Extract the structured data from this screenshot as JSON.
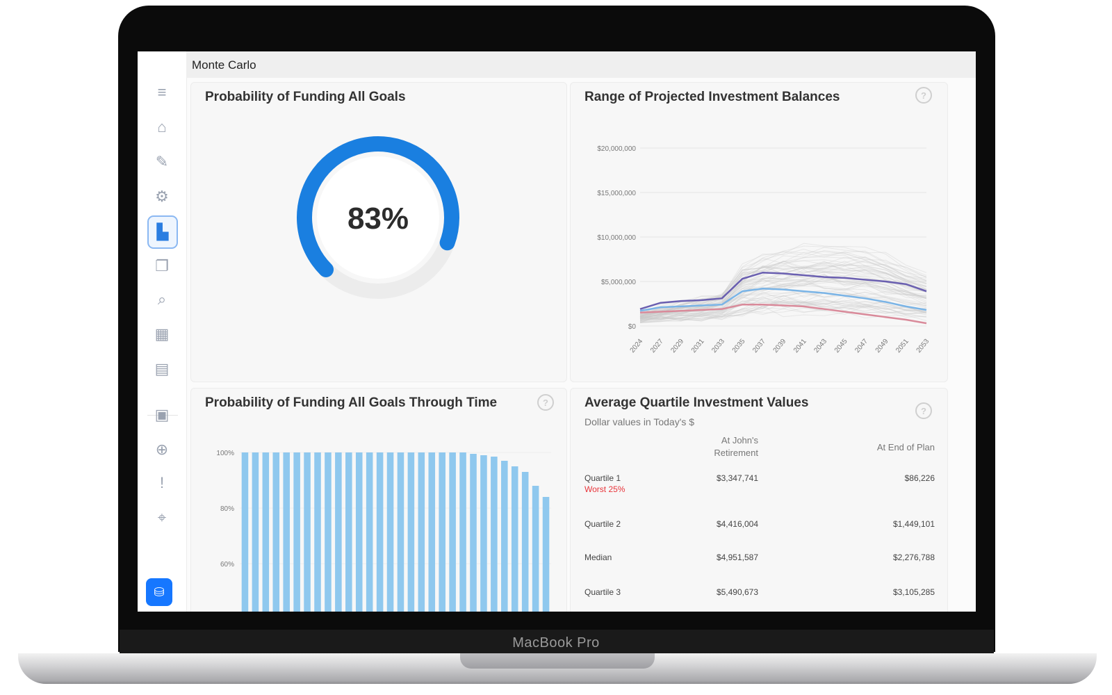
{
  "app": {
    "title": "Monte Carlo"
  },
  "device": {
    "brand": "MacBook Pro"
  },
  "sidebar": {
    "items": [
      {
        "icon": "menu-icon",
        "glyph": "≡"
      },
      {
        "icon": "home-icon",
        "glyph": "⌂"
      },
      {
        "icon": "edit-icon",
        "glyph": "✎"
      },
      {
        "icon": "settings-icon",
        "glyph": "⚙"
      },
      {
        "icon": "chart-icon",
        "glyph": "▙",
        "active": true
      },
      {
        "icon": "wallet-icon",
        "glyph": "❐"
      },
      {
        "icon": "search-person-icon",
        "glyph": "⌕"
      },
      {
        "icon": "bank-icon",
        "glyph": "▦"
      },
      {
        "icon": "documents-icon",
        "glyph": "▤"
      },
      {
        "icon": "clipboard-icon",
        "glyph": "▣"
      },
      {
        "icon": "globe-icon",
        "glyph": "⊕"
      },
      {
        "icon": "alert-icon",
        "glyph": "!"
      },
      {
        "icon": "location-icon",
        "glyph": "⌖"
      }
    ],
    "cta_icon": "database-icon",
    "cta_glyph": "⛁"
  },
  "probability_card": {
    "title": "Probability of Funding All Goals",
    "value_label": "83%",
    "value": 0.83,
    "accent_color": "#1a7fe0"
  },
  "range_card": {
    "title": "Range of Projected Investment Balances",
    "help": "?"
  },
  "through_time_card": {
    "title": "Probability of Funding All Goals Through Time",
    "help": "?"
  },
  "quartile_card": {
    "title": "Average Quartile Investment Values",
    "subtitle": "Dollar values in Today's $",
    "help": "?",
    "headers": [
      "At John's Retirement",
      "At End of Plan"
    ],
    "rows": [
      {
        "label": "Quartile 1",
        "sublabel": "Worst 25%",
        "retirement": "$3,347,741",
        "end": "$86,226"
      },
      {
        "label": "Quartile 2",
        "sublabel": "",
        "retirement": "$4,416,004",
        "end": "$1,449,101"
      },
      {
        "label": "Median",
        "sublabel": "",
        "retirement": "$4,951,587",
        "end": "$2,276,788"
      },
      {
        "label": "Quartile 3",
        "sublabel": "",
        "retirement": "$5,490,673",
        "end": "$3,105,285"
      }
    ],
    "warning_color": "#e8343a"
  },
  "chart_data": [
    {
      "type": "line",
      "title": "Range of Projected Investment Balances",
      "ylim": [
        0,
        20000000
      ],
      "y_ticks": [
        "$0",
        "$5,000,000",
        "$10,000,000",
        "$15,000,000",
        "$20,000,000"
      ],
      "x": [
        "2024",
        "2027",
        "2029",
        "2031",
        "2033",
        "2035",
        "2037",
        "2039",
        "2041",
        "2043",
        "2045",
        "2047",
        "2049",
        "2051",
        "2053"
      ],
      "grid": true,
      "series": [
        {
          "color": "#6a5fb0",
          "values": [
            1900000,
            2600000,
            2800000,
            2900000,
            3100000,
            5300000,
            6000000,
            5900000,
            5700000,
            5500000,
            5400000,
            5200000,
            5000000,
            4700000,
            3900000
          ]
        },
        {
          "color": "#7ab4e6",
          "values": [
            1700000,
            2100000,
            2200000,
            2300000,
            2400000,
            3900000,
            4200000,
            4100000,
            3900000,
            3700000,
            3400000,
            3100000,
            2700000,
            2200000,
            1800000
          ]
        },
        {
          "color": "#d98a9a",
          "values": [
            1500000,
            1600000,
            1700000,
            1800000,
            1900000,
            2400000,
            2400000,
            2300000,
            2200000,
            1900000,
            1600000,
            1300000,
            1000000,
            700000,
            300000
          ]
        }
      ],
      "band_color": "#c9c9c9"
    },
    {
      "type": "bar",
      "title": "Probability of Funding All Goals Through Time",
      "y_ticks": [
        "60%",
        "80%",
        "100%"
      ],
      "ylim": [
        60,
        100
      ],
      "values": [
        100,
        100,
        100,
        100,
        100,
        100,
        100,
        100,
        100,
        100,
        100,
        100,
        100,
        100,
        100,
        100,
        100,
        100,
        100,
        100,
        100,
        100,
        99.5,
        99,
        98.5,
        97,
        95,
        93,
        88,
        84
      ],
      "bar_color": "#8fc8ee"
    }
  ]
}
